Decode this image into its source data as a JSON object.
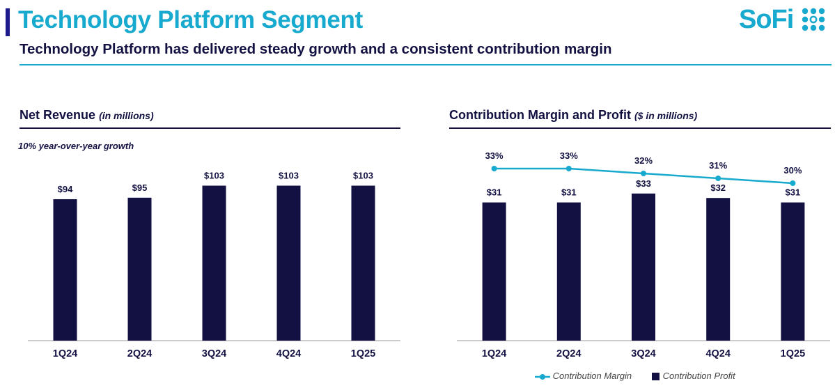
{
  "header": {
    "title": "Technology Platform Segment",
    "subtitle": "Technology Platform has delivered steady growth and a consistent contribution margin",
    "logo_text": "SoFi",
    "logo_icon": "dot-grid-icon",
    "accent_color": "#17a9ce",
    "navy_color": "#121142"
  },
  "left_panel": {
    "title": "Net Revenue",
    "unit": "(in millions)",
    "note": "10% year-over-year growth"
  },
  "right_panel": {
    "title": "Contribution Margin and Profit",
    "unit": "($ in millions)"
  },
  "chart_data": [
    {
      "type": "bar",
      "title": "Net Revenue (in millions)",
      "categories": [
        "1Q24",
        "2Q24",
        "3Q24",
        "4Q24",
        "1Q25"
      ],
      "values": [
        94,
        95,
        103,
        103,
        103
      ],
      "data_labels": [
        "$94",
        "$95",
        "$103",
        "$103",
        "$103"
      ],
      "ylim": [
        0,
        115
      ],
      "bar_color": "#121142",
      "grid": false
    },
    {
      "type": "bar",
      "title": "Contribution Margin and Profit ($ in millions)",
      "categories": [
        "1Q24",
        "2Q24",
        "3Q24",
        "4Q24",
        "1Q25"
      ],
      "series": [
        {
          "name": "Contribution Profit",
          "type": "bar",
          "values": [
            31,
            31,
            33,
            32,
            31
          ],
          "data_labels": [
            "$31",
            "$31",
            "$33",
            "$32",
            "$31"
          ],
          "color": "#121142"
        },
        {
          "name": "Contribution Margin",
          "type": "line",
          "values": [
            33,
            33,
            32,
            31,
            30
          ],
          "data_labels": [
            "33%",
            "33%",
            "32%",
            "31%",
            "30%"
          ],
          "color": "#17a9ce"
        }
      ],
      "legend": "bottom-right",
      "grid": false
    }
  ]
}
